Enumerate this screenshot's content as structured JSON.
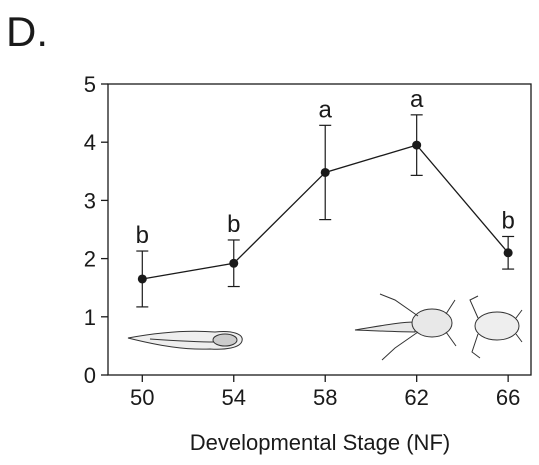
{
  "chart_data": {
    "type": "line",
    "title": "D.",
    "x_label": "Developmental Stage (NF)",
    "x": [
      50,
      54,
      58,
      62,
      66
    ],
    "values": [
      1.65,
      1.92,
      3.48,
      3.95,
      2.1
    ],
    "errors": [
      0.48,
      0.4,
      0.81,
      0.52,
      0.28
    ],
    "annotations": [
      "b",
      "b",
      "a",
      "a",
      "b"
    ],
    "color": "#1a1a1a",
    "xlim": [
      48.5,
      67
    ],
    "xticks": [
      50,
      54,
      58,
      62,
      66
    ],
    "ylim": [
      0,
      5
    ],
    "yticks": [
      0,
      1,
      2,
      3,
      4,
      5
    ],
    "grid": false
  }
}
